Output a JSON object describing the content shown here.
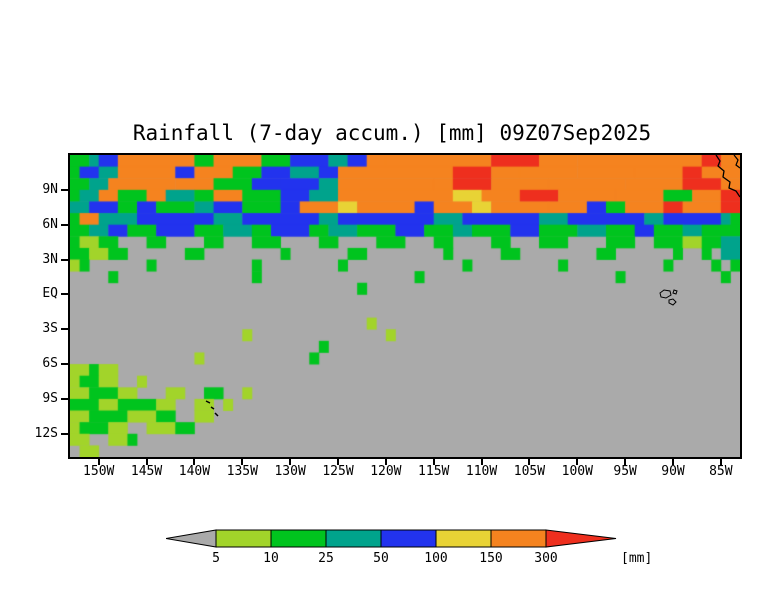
{
  "title": "Rainfall (7-day accum.) [mm] 09Z07Sep2025",
  "chart_data": {
    "type": "heatmap",
    "title": "Rainfall (7-day accum.) [mm] 09Z07Sep2025",
    "units": "mm",
    "x_axis": {
      "range": [
        -153,
        -83
      ],
      "ticks": [
        {
          "label": "150W",
          "lon": -150
        },
        {
          "label": "145W",
          "lon": -145
        },
        {
          "label": "140W",
          "lon": -140
        },
        {
          "label": "135W",
          "lon": -135
        },
        {
          "label": "130W",
          "lon": -130
        },
        {
          "label": "125W",
          "lon": -125
        },
        {
          "label": "120W",
          "lon": -120
        },
        {
          "label": "115W",
          "lon": -115
        },
        {
          "label": "110W",
          "lon": -110
        },
        {
          "label": "105W",
          "lon": -105
        },
        {
          "label": "100W",
          "lon": -100
        },
        {
          "label": "95W",
          "lon": -95
        },
        {
          "label": "90W",
          "lon": -90
        },
        {
          "label": "85W",
          "lon": -85
        }
      ]
    },
    "y_axis": {
      "range": [
        -14,
        12
      ],
      "ticks": [
        {
          "label": "9N",
          "lat": 9
        },
        {
          "label": "6N",
          "lat": 6
        },
        {
          "label": "3N",
          "lat": 3
        },
        {
          "label": "EQ",
          "lat": 0
        },
        {
          "label": "3S",
          "lat": -3
        },
        {
          "label": "6S",
          "lat": -6
        },
        {
          "label": "9S",
          "lat": -9
        },
        {
          "label": "12S",
          "lat": -12
        }
      ]
    },
    "colorbar": {
      "levels": [
        5,
        10,
        25,
        50,
        100,
        150,
        300
      ],
      "labels": [
        "5",
        "10",
        "25",
        "50",
        "100",
        "150",
        "300"
      ],
      "units_label": "[mm]",
      "colors": [
        "#aaaaaa",
        "#a2d42a",
        "#00c41e",
        "#00a38c",
        "#2233ee",
        "#e8d335",
        "#f5831f",
        "#ee2f1e"
      ]
    },
    "grid": {
      "ncols": 70,
      "nrows": 26,
      "lon_start": -153,
      "lon_step": 1,
      "lat_start": 12,
      "lat_step": -1,
      "bin_edges_mm": [
        0,
        5,
        10,
        25,
        50,
        100,
        150,
        300
      ],
      "rows_rle": [
        [
          [
            2,
            2
          ],
          [
            1,
            3
          ],
          [
            2,
            4
          ],
          [
            8,
            6
          ],
          [
            2,
            2
          ],
          [
            5,
            6
          ],
          [
            3,
            2
          ],
          [
            4,
            4
          ],
          [
            2,
            3
          ],
          [
            2,
            4
          ],
          [
            2,
            6
          ],
          [
            11,
            6
          ],
          [
            5,
            7
          ],
          [
            4,
            6
          ],
          [
            10,
            6
          ],
          [
            3,
            6
          ],
          [
            2,
            7
          ],
          [
            2,
            6
          ]
        ],
        [
          [
            1,
            2
          ],
          [
            2,
            4
          ],
          [
            2,
            3
          ],
          [
            6,
            6
          ],
          [
            2,
            4
          ],
          [
            4,
            6
          ],
          [
            3,
            2
          ],
          [
            3,
            4
          ],
          [
            3,
            3
          ],
          [
            2,
            4
          ],
          [
            12,
            6
          ],
          [
            4,
            7
          ],
          [
            3,
            6
          ],
          [
            6,
            6
          ],
          [
            6,
            6
          ],
          [
            5,
            6
          ],
          [
            2,
            7
          ],
          [
            4,
            6
          ]
        ],
        [
          [
            2,
            2
          ],
          [
            2,
            3
          ],
          [
            7,
            6
          ],
          [
            4,
            6
          ],
          [
            4,
            2
          ],
          [
            3,
            4
          ],
          [
            4,
            4
          ],
          [
            2,
            3
          ],
          [
            10,
            6
          ],
          [
            2,
            6
          ],
          [
            4,
            7
          ],
          [
            6,
            6
          ],
          [
            8,
            6
          ],
          [
            6,
            6
          ],
          [
            4,
            7
          ],
          [
            2,
            6
          ]
        ],
        [
          [
            1,
            2
          ],
          [
            2,
            3
          ],
          [
            2,
            6
          ],
          [
            3,
            2
          ],
          [
            2,
            6
          ],
          [
            3,
            3
          ],
          [
            2,
            2
          ],
          [
            3,
            6
          ],
          [
            4,
            2
          ],
          [
            3,
            4
          ],
          [
            3,
            3
          ],
          [
            12,
            6
          ],
          [
            3,
            5
          ],
          [
            4,
            6
          ],
          [
            4,
            7
          ],
          [
            6,
            6
          ],
          [
            5,
            6
          ],
          [
            3,
            2
          ],
          [
            3,
            6
          ],
          [
            2,
            7
          ]
        ],
        [
          [
            2,
            3
          ],
          [
            3,
            4
          ],
          [
            2,
            2
          ],
          [
            2,
            4
          ],
          [
            4,
            2
          ],
          [
            2,
            3
          ],
          [
            3,
            4
          ],
          [
            4,
            2
          ],
          [
            2,
            4
          ],
          [
            4,
            6
          ],
          [
            2,
            5
          ],
          [
            6,
            6
          ],
          [
            2,
            4
          ],
          [
            4,
            6
          ],
          [
            2,
            5
          ],
          [
            6,
            6
          ],
          [
            4,
            6
          ],
          [
            2,
            4
          ],
          [
            2,
            2
          ],
          [
            4,
            6
          ],
          [
            2,
            7
          ],
          [
            4,
            6
          ],
          [
            2,
            7
          ]
        ],
        [
          [
            1,
            2
          ],
          [
            2,
            6
          ],
          [
            4,
            3
          ],
          [
            8,
            4
          ],
          [
            3,
            3
          ],
          [
            8,
            4
          ],
          [
            2,
            3
          ],
          [
            10,
            4
          ],
          [
            3,
            3
          ],
          [
            8,
            4
          ],
          [
            3,
            3
          ],
          [
            8,
            4
          ],
          [
            2,
            3
          ],
          [
            6,
            4
          ],
          [
            1,
            3
          ],
          [
            1,
            2
          ]
        ],
        [
          [
            2,
            2
          ],
          [
            2,
            3
          ],
          [
            2,
            4
          ],
          [
            3,
            2
          ],
          [
            4,
            4
          ],
          [
            3,
            2
          ],
          [
            3,
            3
          ],
          [
            2,
            2
          ],
          [
            4,
            4
          ],
          [
            2,
            2
          ],
          [
            3,
            3
          ],
          [
            4,
            2
          ],
          [
            3,
            4
          ],
          [
            3,
            2
          ],
          [
            2,
            3
          ],
          [
            4,
            2
          ],
          [
            3,
            4
          ],
          [
            4,
            2
          ],
          [
            3,
            3
          ],
          [
            3,
            2
          ],
          [
            2,
            4
          ],
          [
            3,
            2
          ],
          [
            2,
            3
          ],
          [
            2,
            2
          ],
          [
            2,
            2
          ]
        ],
        [
          [
            1,
            2
          ],
          [
            2,
            1
          ],
          [
            2,
            2
          ],
          [
            3,
            0
          ],
          [
            2,
            2
          ],
          [
            4,
            0
          ],
          [
            2,
            2
          ],
          [
            3,
            0
          ],
          [
            3,
            2
          ],
          [
            4,
            0
          ],
          [
            2,
            2
          ],
          [
            4,
            0
          ],
          [
            3,
            2
          ],
          [
            3,
            0
          ],
          [
            2,
            2
          ],
          [
            4,
            0
          ],
          [
            2,
            2
          ],
          [
            3,
            0
          ],
          [
            3,
            2
          ],
          [
            4,
            0
          ],
          [
            3,
            2
          ],
          [
            2,
            0
          ],
          [
            3,
            2
          ],
          [
            2,
            1
          ],
          [
            2,
            2
          ],
          [
            2,
            3
          ]
        ],
        [
          [
            2,
            2
          ],
          [
            2,
            1
          ],
          [
            2,
            2
          ],
          [
            6,
            0
          ],
          [
            2,
            2
          ],
          [
            8,
            0
          ],
          [
            1,
            2
          ],
          [
            6,
            0
          ],
          [
            2,
            2
          ],
          [
            8,
            0
          ],
          [
            1,
            2
          ],
          [
            5,
            0
          ],
          [
            2,
            2
          ],
          [
            8,
            0
          ],
          [
            2,
            2
          ],
          [
            6,
            0
          ],
          [
            1,
            2
          ],
          [
            2,
            0
          ],
          [
            1,
            2
          ],
          [
            1,
            0
          ],
          [
            2,
            3
          ]
        ],
        [
          [
            1,
            1
          ],
          [
            1,
            2
          ],
          [
            6,
            0
          ],
          [
            1,
            2
          ],
          [
            10,
            0
          ],
          [
            1,
            2
          ],
          [
            8,
            0
          ],
          [
            1,
            2
          ],
          [
            12,
            0
          ],
          [
            1,
            2
          ],
          [
            9,
            0
          ],
          [
            1,
            2
          ],
          [
            10,
            0
          ],
          [
            1,
            2
          ],
          [
            4,
            0
          ],
          [
            1,
            2
          ],
          [
            1,
            0
          ],
          [
            1,
            2
          ]
        ],
        [
          [
            4,
            0
          ],
          [
            1,
            2
          ],
          [
            14,
            0
          ],
          [
            1,
            2
          ],
          [
            16,
            0
          ],
          [
            1,
            2
          ],
          [
            20,
            0
          ],
          [
            1,
            2
          ],
          [
            10,
            0
          ],
          [
            1,
            2
          ],
          [
            1,
            0
          ]
        ],
        [
          [
            30,
            0
          ],
          [
            1,
            2
          ],
          [
            39,
            0
          ]
        ],
        [
          [
            70,
            0
          ]
        ],
        [
          [
            70,
            0
          ]
        ],
        [
          [
            31,
            0
          ],
          [
            1,
            1
          ],
          [
            38,
            0
          ]
        ],
        [
          [
            18,
            0
          ],
          [
            1,
            1
          ],
          [
            14,
            0
          ],
          [
            1,
            1
          ],
          [
            36,
            0
          ]
        ],
        [
          [
            26,
            0
          ],
          [
            1,
            2
          ],
          [
            43,
            0
          ]
        ],
        [
          [
            13,
            0
          ],
          [
            1,
            1
          ],
          [
            11,
            0
          ],
          [
            1,
            2
          ],
          [
            44,
            0
          ]
        ],
        [
          [
            2,
            1
          ],
          [
            1,
            2
          ],
          [
            2,
            1
          ],
          [
            65,
            0
          ]
        ],
        [
          [
            1,
            1
          ],
          [
            2,
            2
          ],
          [
            2,
            1
          ],
          [
            2,
            0
          ],
          [
            1,
            1
          ],
          [
            62,
            0
          ]
        ],
        [
          [
            2,
            1
          ],
          [
            3,
            2
          ],
          [
            2,
            1
          ],
          [
            3,
            0
          ],
          [
            2,
            1
          ],
          [
            2,
            0
          ],
          [
            2,
            2
          ],
          [
            2,
            0
          ],
          [
            1,
            1
          ],
          [
            51,
            0
          ]
        ],
        [
          [
            3,
            2
          ],
          [
            2,
            1
          ],
          [
            4,
            2
          ],
          [
            2,
            1
          ],
          [
            2,
            0
          ],
          [
            2,
            1
          ],
          [
            1,
            0
          ],
          [
            1,
            1
          ],
          [
            53,
            0
          ]
        ],
        [
          [
            2,
            1
          ],
          [
            4,
            2
          ],
          [
            3,
            1
          ],
          [
            2,
            2
          ],
          [
            2,
            0
          ],
          [
            2,
            1
          ],
          [
            55,
            0
          ]
        ],
        [
          [
            1,
            1
          ],
          [
            3,
            2
          ],
          [
            2,
            1
          ],
          [
            2,
            0
          ],
          [
            3,
            1
          ],
          [
            2,
            2
          ],
          [
            57,
            0
          ]
        ],
        [
          [
            2,
            1
          ],
          [
            2,
            0
          ],
          [
            2,
            1
          ],
          [
            1,
            2
          ],
          [
            63,
            0
          ]
        ],
        [
          [
            1,
            0
          ],
          [
            2,
            1
          ],
          [
            67,
            0
          ]
        ]
      ]
    },
    "map_features": [
      "central-america-coastline",
      "galapagos-islands-outline",
      "marquesas-islands-marks"
    ]
  }
}
